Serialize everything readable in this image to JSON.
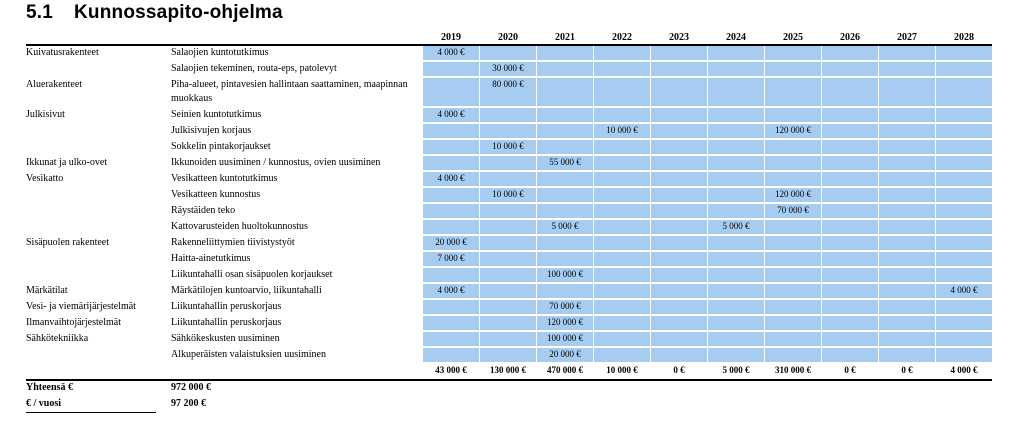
{
  "title": {
    "number": "5.1",
    "text": "Kunnossapito-ohjelma"
  },
  "years": [
    "2019",
    "2020",
    "2021",
    "2022",
    "2023",
    "2024",
    "2025",
    "2026",
    "2027",
    "2028"
  ],
  "rows": [
    {
      "category": "Kuivatusrakenteet",
      "description": "Salaojien kuntotutkimus",
      "values": [
        "4 000 €",
        "",
        "",
        "",
        "",
        "",
        "",
        "",
        "",
        ""
      ]
    },
    {
      "category": "",
      "description": "Salaojien tekeminen, routa-eps, patolevyt",
      "values": [
        "",
        "30 000 €",
        "",
        "",
        "",
        "",
        "",
        "",
        "",
        ""
      ]
    },
    {
      "category": "Aluerakenteet",
      "description": "Piha-alueet, pintavesien hallintaan saattaminen, maapinnan muokkaus",
      "values": [
        "",
        "80 000 €",
        "",
        "",
        "",
        "",
        "",
        "",
        "",
        ""
      ],
      "tall": true
    },
    {
      "category": "Julkisivut",
      "description": "Seinien kuntotutkimus",
      "values": [
        "4 000 €",
        "",
        "",
        "",
        "",
        "",
        "",
        "",
        "",
        ""
      ]
    },
    {
      "category": "",
      "description": "Julkisivujen korjaus",
      "values": [
        "",
        "",
        "",
        "10 000 €",
        "",
        "",
        "120 000 €",
        "",
        "",
        ""
      ]
    },
    {
      "category": "",
      "description": "Sokkelin pintakorjaukset",
      "values": [
        "",
        "10 000 €",
        "",
        "",
        "",
        "",
        "",
        "",
        "",
        ""
      ]
    },
    {
      "category": "Ikkunat ja ulko-ovet",
      "description": "Ikkunoiden uusiminen / kunnostus, ovien uusiminen",
      "values": [
        "",
        "",
        "55 000 €",
        "",
        "",
        "",
        "",
        "",
        "",
        ""
      ]
    },
    {
      "category": "Vesikatto",
      "description": "Vesikatteen kuntotutkimus",
      "values": [
        "4 000 €",
        "",
        "",
        "",
        "",
        "",
        "",
        "",
        "",
        ""
      ]
    },
    {
      "category": "",
      "description": "Vesikatteen kunnostus",
      "values": [
        "",
        "10 000 €",
        "",
        "",
        "",
        "",
        "120 000 €",
        "",
        "",
        ""
      ]
    },
    {
      "category": "",
      "description": "Räystäiden teko",
      "values": [
        "",
        "",
        "",
        "",
        "",
        "",
        "70 000 €",
        "",
        "",
        ""
      ]
    },
    {
      "category": "",
      "description": "Kattovarusteiden huoltokunnostus",
      "values": [
        "",
        "",
        "5 000 €",
        "",
        "",
        "5 000 €",
        "",
        "",
        "",
        ""
      ]
    },
    {
      "category": "Sisäpuolen rakenteet",
      "description": "Rakenneliittymien tiivistystyöt",
      "values": [
        "20 000 €",
        "",
        "",
        "",
        "",
        "",
        "",
        "",
        "",
        ""
      ]
    },
    {
      "category": "",
      "description": "Haitta-ainetutkimus",
      "values": [
        "7 000 €",
        "",
        "",
        "",
        "",
        "",
        "",
        "",
        "",
        ""
      ]
    },
    {
      "category": "",
      "description": "Liikuntahalli osan sisäpuolen korjaukset",
      "values": [
        "",
        "",
        "100 000 €",
        "",
        "",
        "",
        "",
        "",
        "",
        ""
      ]
    },
    {
      "category": "Märkätilat",
      "description": "Märkätilojen kuntoarvio, liikuntahalli",
      "values": [
        "4 000 €",
        "",
        "",
        "",
        "",
        "",
        "",
        "",
        "",
        "4 000 €"
      ]
    },
    {
      "category": "Vesi- ja viemärijärjestelmät",
      "description": "Liikuntahallin peruskorjaus",
      "values": [
        "",
        "",
        "70 000 €",
        "",
        "",
        "",
        "",
        "",
        "",
        ""
      ]
    },
    {
      "category": "Ilmanvaihtojärjestelmät",
      "description": "Liikuntahallin peruskorjaus",
      "values": [
        "",
        "",
        "120 000 €",
        "",
        "",
        "",
        "",
        "",
        "",
        ""
      ]
    },
    {
      "category": "Sähkötekniikka",
      "description": "Sähkökeskusten uusiminen",
      "values": [
        "",
        "",
        "100 000 €",
        "",
        "",
        "",
        "",
        "",
        "",
        ""
      ]
    },
    {
      "category": "",
      "description": "Alkuperäisten valaistuksien uusiminen",
      "values": [
        "",
        "",
        "20 000 €",
        "",
        "",
        "",
        "",
        "",
        "",
        ""
      ]
    }
  ],
  "totals": [
    "43 000 €",
    "130 000 €",
    "470 000 €",
    "10 000 €",
    "0 €",
    "5 000 €",
    "310 000 €",
    "0 €",
    "0 €",
    "4 000 €"
  ],
  "summary": [
    {
      "label": "Yhteensä €",
      "value": "972 000 €"
    },
    {
      "label": "€ / vuosi",
      "value": "97 200 €"
    }
  ],
  "colors": {
    "cell_fill": "#a6cdf1",
    "rule": "#000000"
  }
}
